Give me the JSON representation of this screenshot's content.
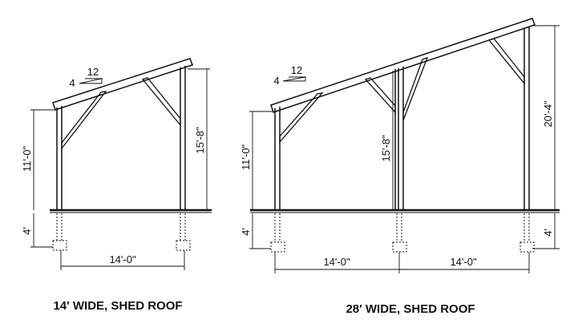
{
  "colors": {
    "line": "#111111",
    "background": "#ffffff"
  },
  "left": {
    "caption": "14′ WIDE, SHED ROOF",
    "pitch_rise": "4",
    "pitch_run": "12",
    "dims": {
      "short_post": "11'-0\"",
      "tall_post": "15'-8\"",
      "embed": "4'",
      "width": "14'-0\""
    }
  },
  "right": {
    "caption": "28′ WIDE, SHED ROOF",
    "pitch_rise": "4",
    "pitch_run": "12",
    "dims": {
      "short_post": "11'-0\"",
      "mid_post": "15'-8\"",
      "tall_post": "20'-4\"",
      "embed": "4'",
      "width_left": "14'-0\"",
      "width_right": "14'-0\""
    }
  }
}
